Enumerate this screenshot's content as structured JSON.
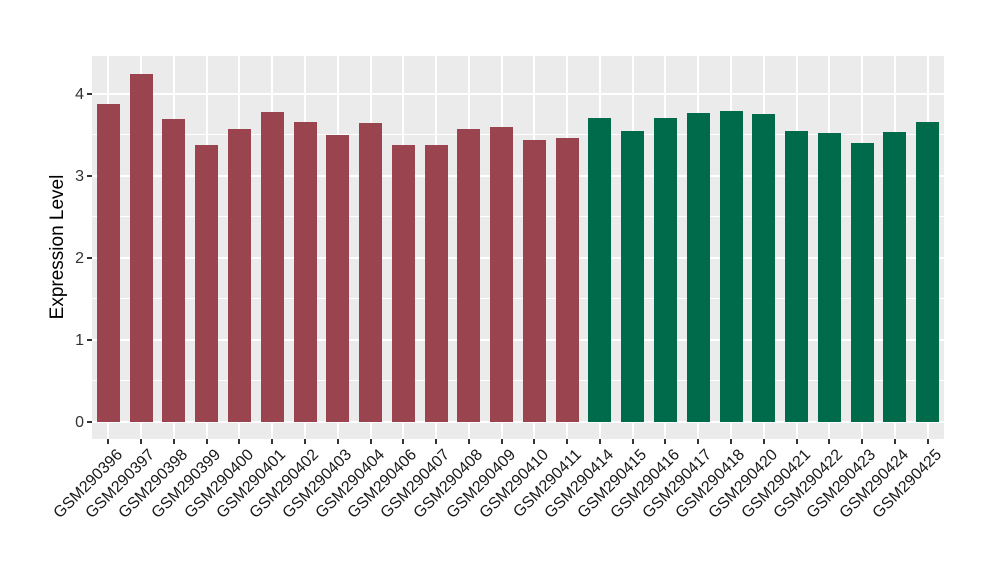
{
  "chart_data": {
    "type": "bar",
    "title": "",
    "xlabel": "",
    "ylabel": "Expression Level",
    "categories": [
      "GSM290396",
      "GSM290397",
      "GSM290398",
      "GSM290399",
      "GSM290400",
      "GSM290401",
      "GSM290402",
      "GSM290403",
      "GSM290404",
      "GSM290406",
      "GSM290407",
      "GSM290408",
      "GSM290409",
      "GSM290410",
      "GSM290411",
      "GSM290414",
      "GSM290415",
      "GSM290416",
      "GSM290417",
      "GSM290418",
      "GSM290420",
      "GSM290421",
      "GSM290422",
      "GSM290423",
      "GSM290424",
      "GSM290425"
    ],
    "values": [
      3.87,
      4.24,
      3.69,
      3.37,
      3.57,
      3.78,
      3.65,
      3.5,
      3.64,
      3.38,
      3.38,
      3.57,
      3.59,
      3.43,
      3.46,
      3.7,
      3.55,
      3.71,
      3.76,
      3.79,
      3.75,
      3.54,
      3.52,
      3.4,
      3.53,
      3.65
    ],
    "groups": [
      {
        "name": "group-1",
        "color": "#9A4450",
        "start_index": 0,
        "end_index": 14
      },
      {
        "name": "group-2",
        "color": "#006B4A",
        "start_index": 15,
        "end_index": 25
      }
    ],
    "y_ticks": [
      0,
      1,
      2,
      3,
      4
    ],
    "y_tick_labels": [
      "0",
      "1",
      "2",
      "3",
      "4"
    ],
    "y_minor_ticks": [
      0.5,
      1.5,
      2.5,
      3.5
    ],
    "ylim": [
      -0.21,
      4.46
    ],
    "grid": true,
    "legend": "none",
    "panel_bg": "#EBEBEB",
    "grid_color": "#FFFFFF",
    "x_label_angle_deg": 45
  }
}
